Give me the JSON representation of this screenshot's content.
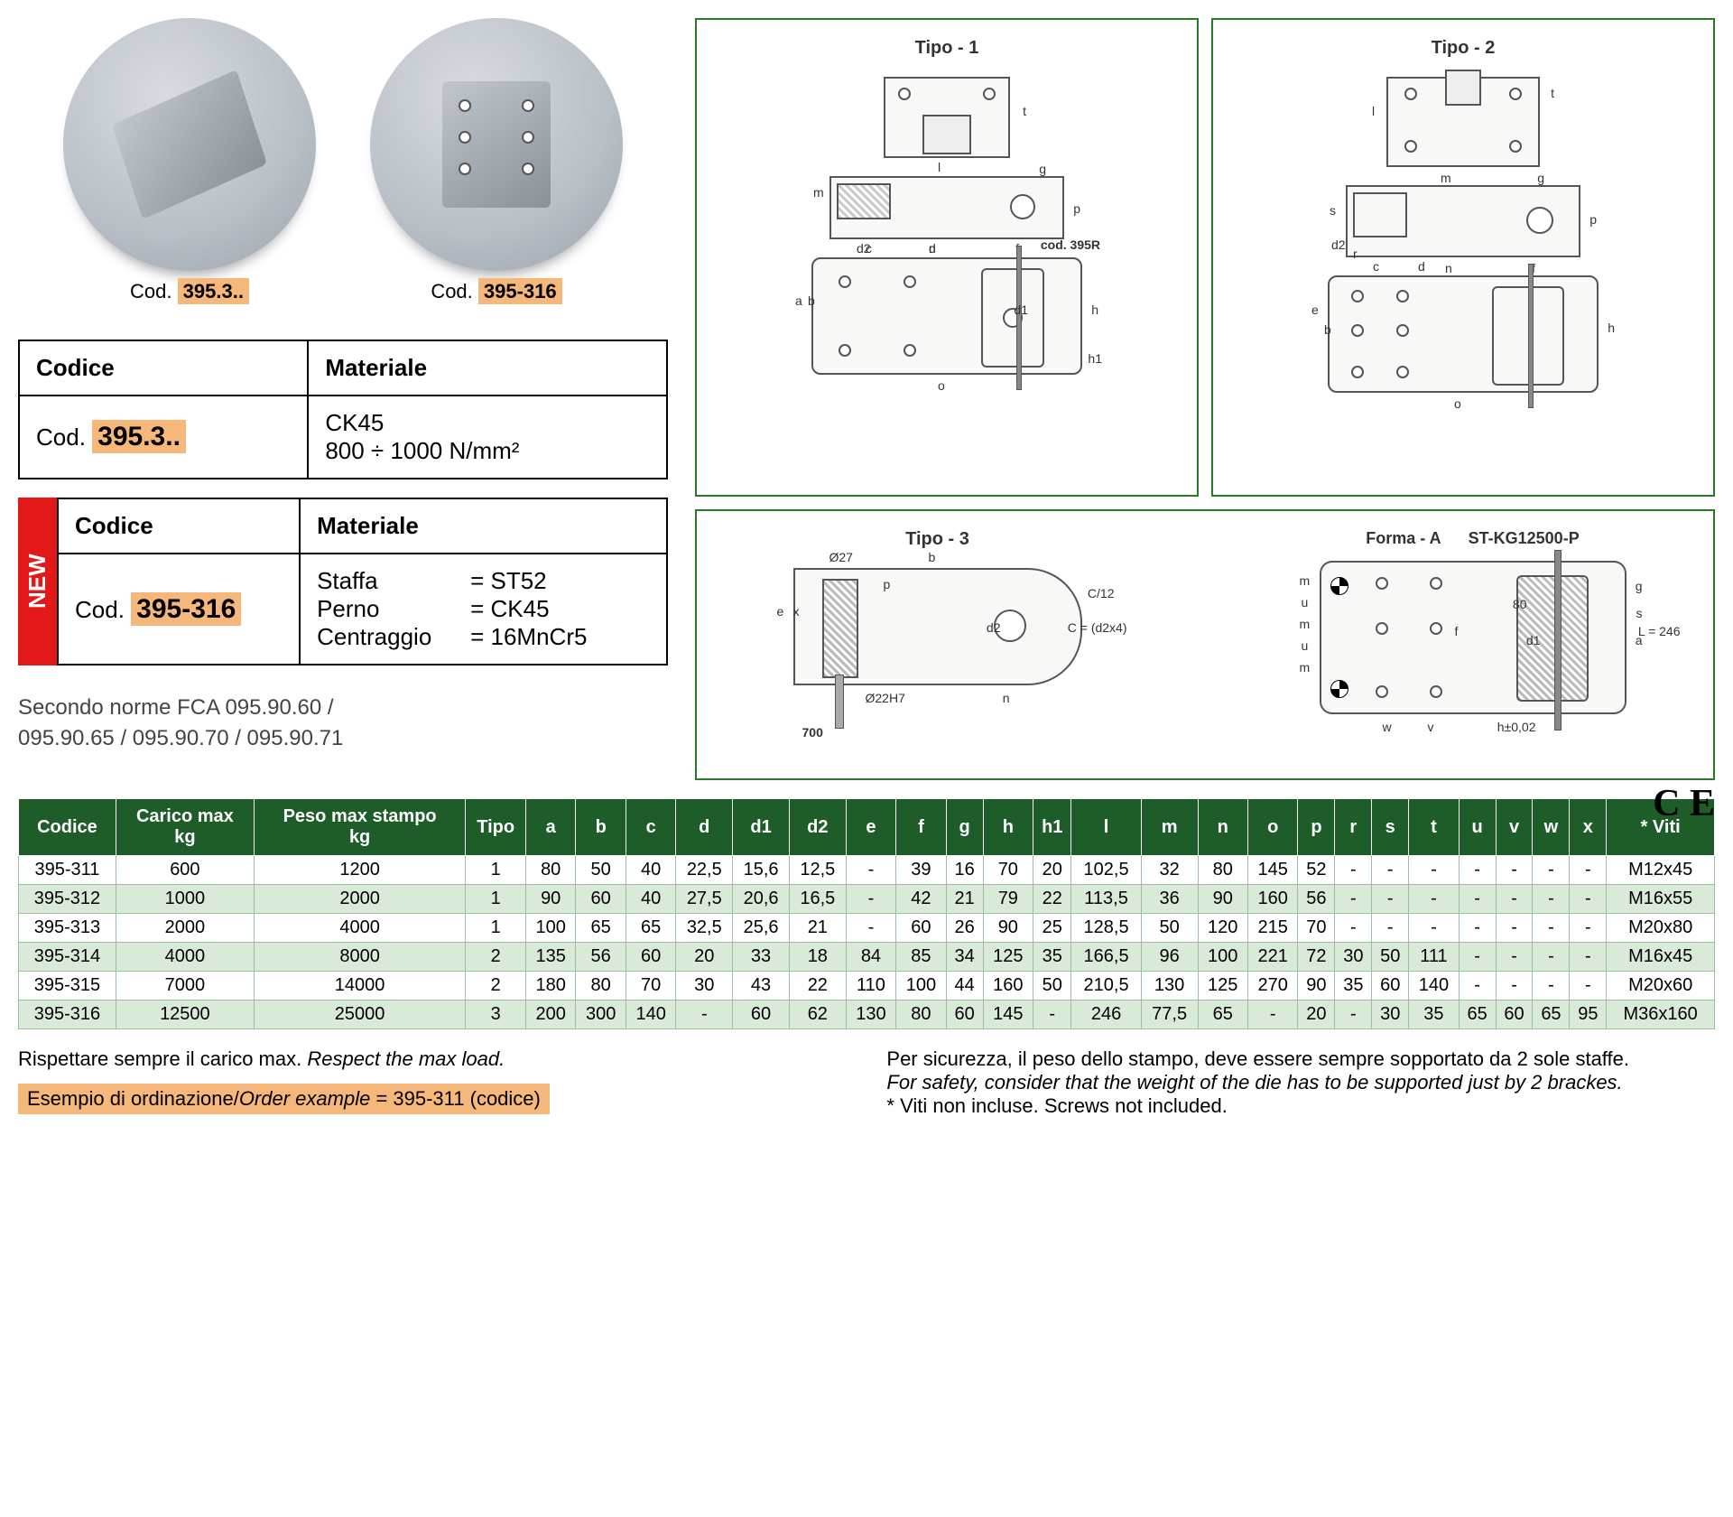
{
  "products": {
    "left": {
      "prefix": "Cod.",
      "code": "395.3.."
    },
    "right": {
      "prefix": "Cod.",
      "code": "395-316"
    }
  },
  "material1": {
    "header_code": "Codice",
    "header_mat": "Materiale",
    "code_prefix": "Cod.",
    "code": "395.3..",
    "mat_line1": "CK45",
    "mat_line2": "800 ÷ 1000 N/mm²"
  },
  "new_badge": "NEW",
  "material2": {
    "header_code": "Codice",
    "header_mat": "Materiale",
    "code_prefix": "Cod.",
    "code": "395-316",
    "rows": [
      {
        "label": "Staffa",
        "eq": "= ST52"
      },
      {
        "label": "Perno",
        "eq": "= CK45"
      },
      {
        "label": "Centraggio",
        "eq": "= 16MnCr5"
      }
    ]
  },
  "norms": {
    "line1": "Secondo norme FCA 095.90.60 /",
    "line2": "095.90.65 / 095.90.70 / 095.90.71"
  },
  "diagrams": {
    "tipo1": "Tipo - 1",
    "tipo2": "Tipo - 2",
    "tipo3": "Tipo - 3",
    "formaA": "Forma - A",
    "st_code": "ST-KG12500-P",
    "cod395r": "cod. 395R",
    "dim_labels": [
      "a",
      "b",
      "c",
      "d",
      "d1",
      "d2",
      "e",
      "f",
      "g",
      "h",
      "h1",
      "l",
      "m",
      "n",
      "o",
      "p",
      "r",
      "s",
      "t",
      "u",
      "v",
      "w",
      "x"
    ],
    "t3_700": "700",
    "t3_d27": "Ø27",
    "t3_d22": "Ø22H7",
    "t3_c12": "C/12",
    "t3_80": "80",
    "t3_L": "L = 246",
    "t3_h": "h±0,02"
  },
  "ce": "C E",
  "table": {
    "headers": [
      "Codice",
      "Carico max kg",
      "Peso max stampo kg",
      "Tipo",
      "a",
      "b",
      "c",
      "d",
      "d1",
      "d2",
      "e",
      "f",
      "g",
      "h",
      "h1",
      "l",
      "m",
      "n",
      "o",
      "p",
      "r",
      "s",
      "t",
      "u",
      "v",
      "w",
      "x",
      "* Viti"
    ],
    "rows": [
      [
        "395-311",
        "600",
        "1200",
        "1",
        "80",
        "50",
        "40",
        "22,5",
        "15,6",
        "12,5",
        "-",
        "39",
        "16",
        "70",
        "20",
        "102,5",
        "32",
        "80",
        "145",
        "52",
        "-",
        "-",
        "-",
        "-",
        "-",
        "-",
        "-",
        "M12x45"
      ],
      [
        "395-312",
        "1000",
        "2000",
        "1",
        "90",
        "60",
        "40",
        "27,5",
        "20,6",
        "16,5",
        "-",
        "42",
        "21",
        "79",
        "22",
        "113,5",
        "36",
        "90",
        "160",
        "56",
        "-",
        "-",
        "-",
        "-",
        "-",
        "-",
        "-",
        "M16x55"
      ],
      [
        "395-313",
        "2000",
        "4000",
        "1",
        "100",
        "65",
        "65",
        "32,5",
        "25,6",
        "21",
        "-",
        "60",
        "26",
        "90",
        "25",
        "128,5",
        "50",
        "120",
        "215",
        "70",
        "-",
        "-",
        "-",
        "-",
        "-",
        "-",
        "-",
        "M20x80"
      ],
      [
        "395-314",
        "4000",
        "8000",
        "2",
        "135",
        "56",
        "60",
        "20",
        "33",
        "18",
        "84",
        "85",
        "34",
        "125",
        "35",
        "166,5",
        "96",
        "100",
        "221",
        "72",
        "30",
        "50",
        "111",
        "-",
        "-",
        "-",
        "-",
        "M16x45"
      ],
      [
        "395-315",
        "7000",
        "14000",
        "2",
        "180",
        "80",
        "70",
        "30",
        "43",
        "22",
        "110",
        "100",
        "44",
        "160",
        "50",
        "210,5",
        "130",
        "125",
        "270",
        "90",
        "35",
        "60",
        "140",
        "-",
        "-",
        "-",
        "-",
        "M20x60"
      ],
      [
        "395-316",
        "12500",
        "25000",
        "3",
        "200",
        "300",
        "140",
        "-",
        "60",
        "62",
        "130",
        "80",
        "60",
        "145",
        "-",
        "246",
        "77,5",
        "65",
        "-",
        "20",
        "-",
        "30",
        "35",
        "65",
        "60",
        "65",
        "95",
        "M36x160"
      ]
    ]
  },
  "notes": {
    "respect_it": "Rispettare sempre il carico max.",
    "respect_en": "Respect the max load.",
    "order_it": "Esempio di ordinazione/",
    "order_en": "Order example",
    "order_val": " = 395-311 (codice)",
    "safety_it": "Per sicurezza, il peso dello stampo, deve essere sempre sopportato da 2 sole staffe.",
    "safety_en": "For safety, consider that the weight of the die has to be supported just by 2 brackes.",
    "viti": "* Viti non incluse. Screws not included."
  },
  "colors": {
    "highlight": "#f5b87a",
    "table_header": "#1e5d2a",
    "row_alt": "#d9ead9",
    "diagram_border": "#2a7a2d",
    "new_badge": "#e31818"
  }
}
